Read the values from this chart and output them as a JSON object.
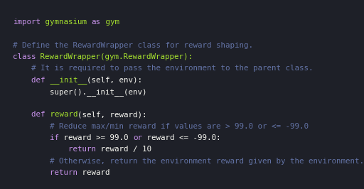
{
  "bg_color": "#1e2028",
  "fig_width": 5.12,
  "fig_height": 2.66,
  "dpi": 100,
  "font_size": 7.8,
  "lines": [
    [
      {
        "text": "import",
        "color": "#c792ea"
      },
      {
        "text": " gymnasium ",
        "color": "#a6e22e"
      },
      {
        "text": "as",
        "color": "#c792ea"
      },
      {
        "text": " gym",
        "color": "#a6e22e"
      }
    ],
    [],
    [
      {
        "text": "# Define the RewardWrapper class for reward shaping.",
        "color": "#6272a4"
      }
    ],
    [
      {
        "text": "class",
        "color": "#c792ea"
      },
      {
        "text": " RewardWrapper(gym.RewardWrapper):",
        "color": "#a6e22e"
      }
    ],
    [
      {
        "text": "    # It is required to pass the environment to the parent class.",
        "color": "#6272a4"
      }
    ],
    [
      {
        "text": "    def",
        "color": "#c792ea"
      },
      {
        "text": " __init__",
        "color": "#a6e22e"
      },
      {
        "text": "(self, env):",
        "color": "#f8f8f2"
      }
    ],
    [
      {
        "text": "        super().__init__(env)",
        "color": "#f8f8f2"
      }
    ],
    [],
    [
      {
        "text": "    def",
        "color": "#c792ea"
      },
      {
        "text": " reward",
        "color": "#a6e22e"
      },
      {
        "text": "(self, reward):",
        "color": "#f8f8f2"
      }
    ],
    [
      {
        "text": "        # Reduce max/min reward if values are > 99.0 or <= -99.0",
        "color": "#6272a4"
      }
    ],
    [
      {
        "text": "        if",
        "color": "#c792ea"
      },
      {
        "text": " reward >= 99.0 ",
        "color": "#f8f8f2"
      },
      {
        "text": "or",
        "color": "#c792ea"
      },
      {
        "text": " reward <= -99.0:",
        "color": "#f8f8f2"
      }
    ],
    [
      {
        "text": "            return",
        "color": "#c792ea"
      },
      {
        "text": " reward / 10",
        "color": "#f8f8f2"
      }
    ],
    [
      {
        "text": "        # Otherwise, return the environment reward given by the environment.",
        "color": "#6272a4"
      }
    ],
    [
      {
        "text": "        return",
        "color": "#c792ea"
      },
      {
        "text": " reward",
        "color": "#f8f8f2"
      }
    ]
  ]
}
